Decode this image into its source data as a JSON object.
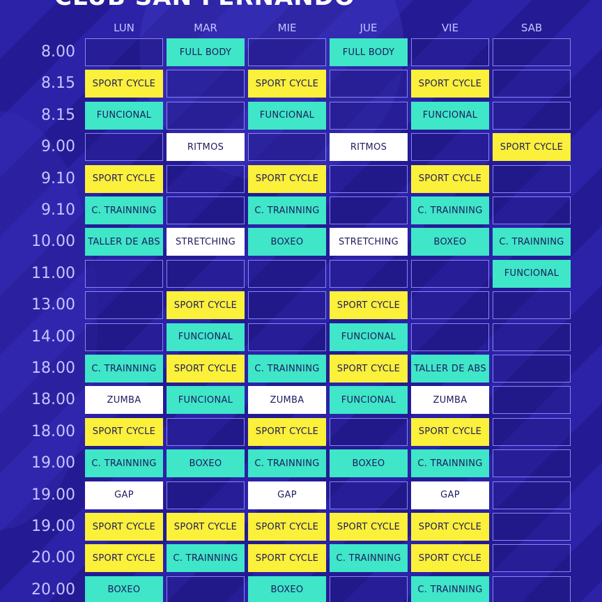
{
  "header": {
    "title": "CLUB SAN FERNANDO"
  },
  "days": [
    "LUN",
    "MAR",
    "MIE",
    "JUE",
    "VIE",
    "SAB"
  ],
  "class_colors": {
    "SPORT CYCLE": "#fbf03a",
    "FULL BODY": "#3fe6c8",
    "FUNCIONAL": "#3fe6c8",
    "C. TRAINNING": "#3fe6c8",
    "BOXEO": "#3fe6c8",
    "TALLER DE ABS": "#3fe6c8",
    "RITMOS": "#ffffff",
    "STRETCHING": "#ffffff",
    "ZUMBA": "#ffffff",
    "GAP": "#ffffff"
  },
  "rows": [
    {
      "time": "8.00",
      "cells": [
        null,
        "FULL BODY",
        null,
        "FULL BODY",
        null,
        null
      ]
    },
    {
      "time": "8.15",
      "cells": [
        "SPORT CYCLE",
        null,
        "SPORT CYCLE",
        null,
        "SPORT CYCLE",
        null
      ]
    },
    {
      "time": "8.15",
      "cells": [
        "FUNCIONAL",
        null,
        "FUNCIONAL",
        null,
        "FUNCIONAL",
        null
      ]
    },
    {
      "time": "9.00",
      "cells": [
        null,
        "RITMOS",
        null,
        "RITMOS",
        null,
        "SPORT CYCLE"
      ]
    },
    {
      "time": "9.10",
      "cells": [
        "SPORT CYCLE",
        null,
        "SPORT CYCLE",
        null,
        "SPORT CYCLE",
        null
      ]
    },
    {
      "time": "9.10",
      "cells": [
        "C. TRAINNING",
        null,
        "C. TRAINNING",
        null,
        "C. TRAINNING",
        null
      ]
    },
    {
      "time": "10.00",
      "cells": [
        "TALLER DE ABS",
        "STRETCHING",
        "BOXEO",
        "STRETCHING",
        "BOXEO",
        "C. TRAINNING"
      ]
    },
    {
      "time": "11.00",
      "cells": [
        null,
        null,
        null,
        null,
        null,
        "FUNCIONAL"
      ]
    },
    {
      "time": "13.00",
      "cells": [
        null,
        "SPORT CYCLE",
        null,
        "SPORT CYCLE",
        null,
        null
      ]
    },
    {
      "time": "14.00",
      "cells": [
        null,
        "FUNCIONAL",
        null,
        "FUNCIONAL",
        null,
        null
      ]
    },
    {
      "time": "18.00",
      "cells": [
        "C. TRAINNING",
        "SPORT CYCLE",
        "C. TRAINNING",
        "SPORT CYCLE",
        "TALLER DE ABS",
        null
      ]
    },
    {
      "time": "18.00",
      "cells": [
        "ZUMBA",
        "FUNCIONAL",
        "ZUMBA",
        "FUNCIONAL",
        "ZUMBA",
        null
      ]
    },
    {
      "time": "18.00",
      "cells": [
        "SPORT CYCLE",
        null,
        "SPORT CYCLE",
        null,
        "SPORT CYCLE",
        null
      ]
    },
    {
      "time": "19.00",
      "cells": [
        "C. TRAINNING",
        "BOXEO",
        "C. TRAINNING",
        "BOXEO",
        "C. TRAINNING",
        null
      ]
    },
    {
      "time": "19.00",
      "cells": [
        "GAP",
        null,
        "GAP",
        null,
        "GAP",
        null
      ]
    },
    {
      "time": "19.00",
      "cells": [
        "SPORT CYCLE",
        "SPORT CYCLE",
        "SPORT CYCLE",
        "SPORT CYCLE",
        "SPORT CYCLE",
        null
      ]
    },
    {
      "time": "20.00",
      "cells": [
        "SPORT CYCLE",
        "C. TRAINNING",
        "SPORT CYCLE",
        "C. TRAINNING",
        "SPORT CYCLE",
        null
      ]
    },
    {
      "time": "20.00",
      "cells": [
        "BOXEO",
        null,
        "BOXEO",
        null,
        "C. TRAINNING",
        null
      ]
    }
  ]
}
